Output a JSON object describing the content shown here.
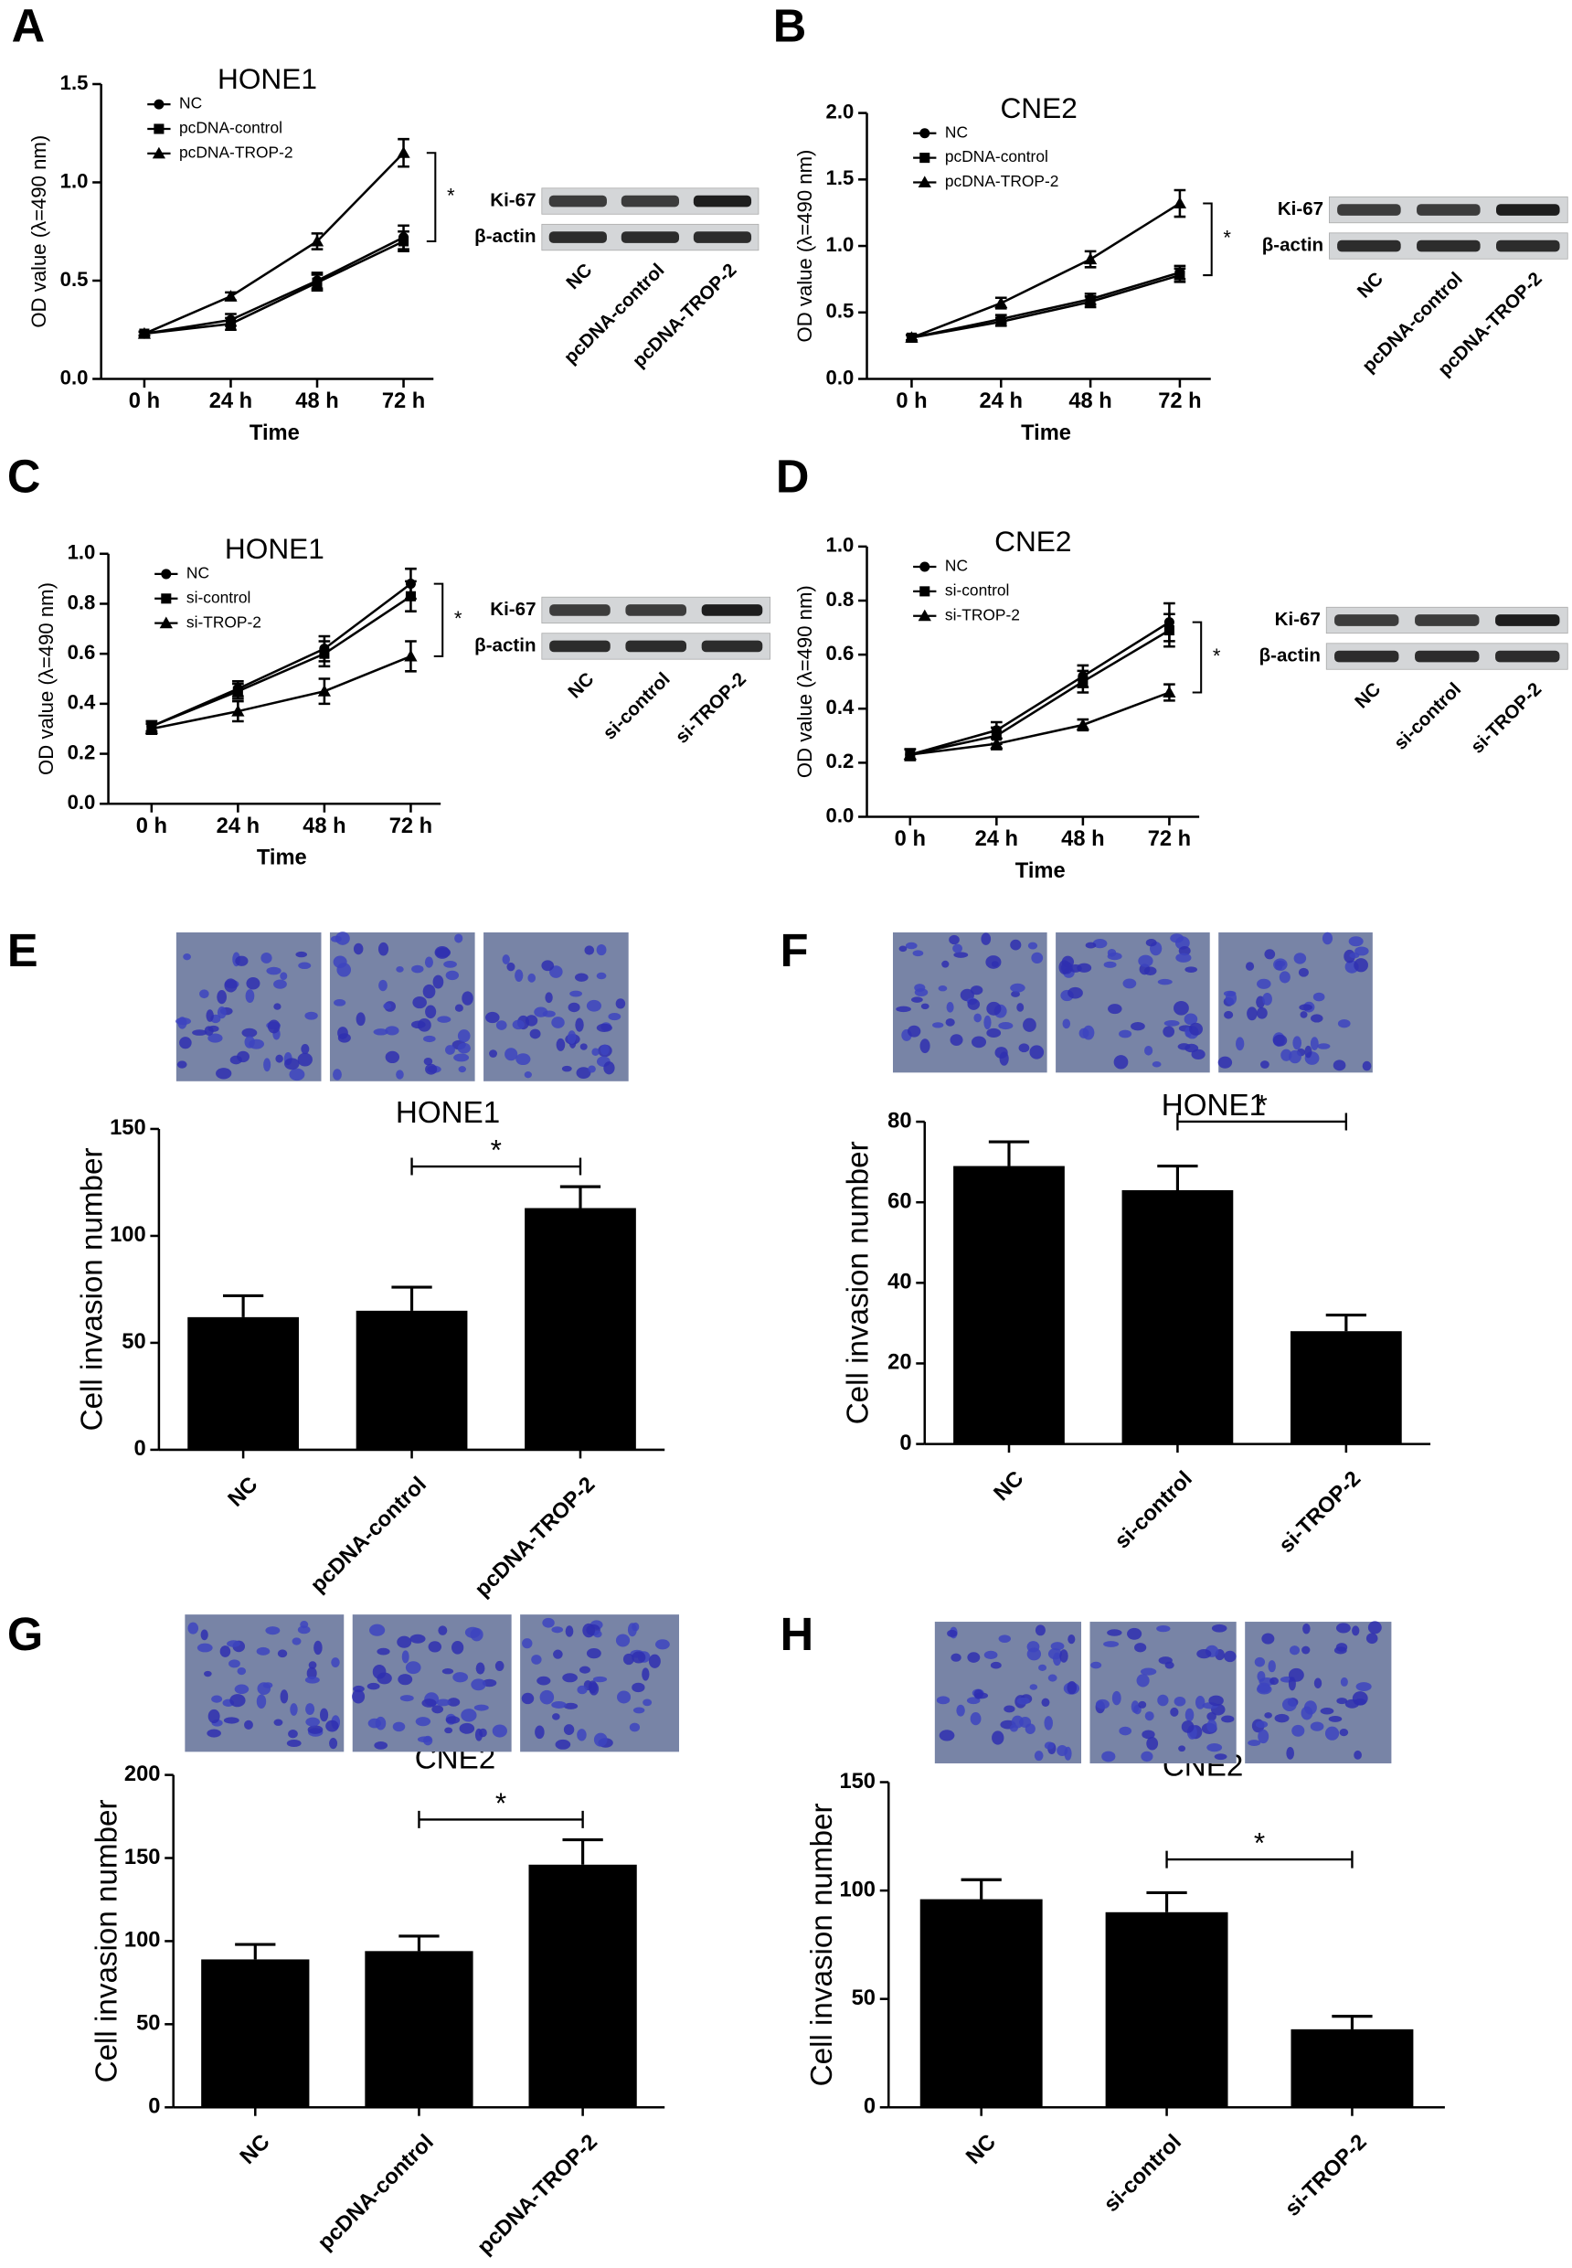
{
  "chart_data": [
    {
      "type": "line",
      "panel": "A",
      "title": "HONE1",
      "xlabel": "Time",
      "ylabel": "OD value (λ=490 nm)",
      "categories": [
        "0 h",
        "24 h",
        "48 h",
        "72 h"
      ],
      "ylim": [
        0,
        1.5
      ],
      "yticks": [
        {
          "value": 0,
          "label": "0.0"
        },
        0.5,
        {
          "value": 1,
          "label": "1.0"
        },
        1.5
      ],
      "series": [
        {
          "name": "NC",
          "marker": "circle",
          "color": "#000000",
          "values": [
            0.23,
            0.3,
            0.5,
            0.72
          ],
          "errors": [
            0.01,
            0.03,
            0.04,
            0.06
          ]
        },
        {
          "name": "pcDNA-control",
          "marker": "square",
          "color": "#000000",
          "values": [
            0.23,
            0.28,
            0.49,
            0.7
          ],
          "errors": [
            0.01,
            0.03,
            0.04,
            0.05
          ]
        },
        {
          "name": "pcDNA-TROP-2",
          "marker": "triangle",
          "color": "#000000",
          "values": [
            0.23,
            0.42,
            0.7,
            1.15
          ],
          "errors": [
            0.01,
            0.02,
            0.04,
            0.07
          ]
        }
      ],
      "significance": "*",
      "blot": {
        "rows": [
          "Ki-67",
          "β-actin"
        ],
        "lanes": [
          "NC",
          "pcDNA-control",
          "pcDNA-TROP-2"
        ]
      }
    },
    {
      "type": "line",
      "panel": "B",
      "title": "CNE2",
      "xlabel": "Time",
      "ylabel": "OD value (λ=490 nm)",
      "categories": [
        "0 h",
        "24 h",
        "48 h",
        "72 h"
      ],
      "ylim": [
        0,
        2
      ],
      "yticks": [
        {
          "value": 0,
          "label": "0.0"
        },
        0.5,
        {
          "value": 1,
          "label": "1.0"
        },
        1.5,
        {
          "value": 2,
          "label": "2.0"
        }
      ],
      "series": [
        {
          "name": "NC",
          "marker": "circle",
          "color": "#000000",
          "values": [
            0.31,
            0.45,
            0.6,
            0.8
          ],
          "errors": [
            0.02,
            0.03,
            0.04,
            0.05
          ]
        },
        {
          "name": "pcDNA-control",
          "marker": "square",
          "color": "#000000",
          "values": [
            0.31,
            0.43,
            0.58,
            0.78
          ],
          "errors": [
            0.02,
            0.03,
            0.04,
            0.05
          ]
        },
        {
          "name": "pcDNA-TROP-2",
          "marker": "triangle",
          "color": "#000000",
          "values": [
            0.31,
            0.57,
            0.9,
            1.32
          ],
          "errors": [
            0.02,
            0.04,
            0.06,
            0.1
          ]
        }
      ],
      "significance": "*",
      "blot": {
        "rows": [
          "Ki-67",
          "β-actin"
        ],
        "lanes": [
          "NC",
          "pcDNA-control",
          "pcDNA-TROP-2"
        ]
      }
    },
    {
      "type": "line",
      "panel": "C",
      "title": "HONE1",
      "xlabel": "Time",
      "ylabel": "OD value (λ=490 nm)",
      "categories": [
        "0 h",
        "24 h",
        "48 h",
        "72 h"
      ],
      "ylim": [
        0,
        1
      ],
      "yticks": [
        {
          "value": 0,
          "label": "0.0"
        },
        0.2,
        0.4,
        0.6,
        0.8,
        {
          "value": 1,
          "label": "1.0"
        }
      ],
      "series": [
        {
          "name": "NC",
          "marker": "circle",
          "color": "#000000",
          "values": [
            0.31,
            0.46,
            0.62,
            0.88
          ],
          "errors": [
            0.02,
            0.03,
            0.05,
            0.06
          ]
        },
        {
          "name": "si-control",
          "marker": "square",
          "color": "#000000",
          "values": [
            0.31,
            0.45,
            0.6,
            0.83
          ],
          "errors": [
            0.02,
            0.03,
            0.05,
            0.06
          ]
        },
        {
          "name": "si-TROP-2",
          "marker": "triangle",
          "color": "#000000",
          "values": [
            0.3,
            0.37,
            0.45,
            0.59
          ],
          "errors": [
            0.02,
            0.04,
            0.05,
            0.06
          ]
        }
      ],
      "significance": "*",
      "blot": {
        "rows": [
          "Ki-67",
          "β-actin"
        ],
        "lanes": [
          "NC",
          "si-control",
          "si-TROP-2"
        ]
      }
    },
    {
      "type": "line",
      "panel": "D",
      "title": "CNE2",
      "xlabel": "Time",
      "ylabel": "OD value (λ=490 nm)",
      "categories": [
        "0 h",
        "24 h",
        "48 h",
        "72 h"
      ],
      "ylim": [
        0,
        1
      ],
      "yticks": [
        {
          "value": 0,
          "label": "0.0"
        },
        0.2,
        0.4,
        0.6,
        0.8,
        {
          "value": 1,
          "label": "1.0"
        }
      ],
      "series": [
        {
          "name": "NC",
          "marker": "circle",
          "color": "#000000",
          "values": [
            0.23,
            0.32,
            0.52,
            0.72
          ],
          "errors": [
            0.02,
            0.03,
            0.04,
            0.07
          ]
        },
        {
          "name": "si-control",
          "marker": "square",
          "color": "#000000",
          "values": [
            0.23,
            0.3,
            0.5,
            0.69
          ],
          "errors": [
            0.02,
            0.03,
            0.04,
            0.06
          ]
        },
        {
          "name": "si-TROP-2",
          "marker": "triangle",
          "color": "#000000",
          "values": [
            0.23,
            0.27,
            0.34,
            0.46
          ],
          "errors": [
            0.02,
            0.02,
            0.02,
            0.03
          ]
        }
      ],
      "significance": "*",
      "blot": {
        "rows": [
          "Ki-67",
          "β-actin"
        ],
        "lanes": [
          "NC",
          "si-control",
          "si-TROP-2"
        ]
      }
    },
    {
      "type": "bar",
      "panel": "E",
      "title": "HONE1",
      "ylabel": "Cell invasion number",
      "categories": [
        "NC",
        "pcDNA-control",
        "pcDNA-TROP-2"
      ],
      "values": [
        62,
        65,
        113
      ],
      "errors": [
        10,
        11,
        10
      ],
      "color": "#000000",
      "ylim": [
        0,
        150
      ],
      "yticks": [
        0,
        50,
        100,
        150
      ],
      "significance": "*"
    },
    {
      "type": "bar",
      "panel": "F",
      "title": "HONE1",
      "ylabel": "Cell invasion number",
      "categories": [
        "NC",
        "si-control",
        "si-TROP-2"
      ],
      "values": [
        69,
        63,
        28
      ],
      "errors": [
        6,
        6,
        4
      ],
      "color": "#000000",
      "ylim": [
        0,
        80
      ],
      "yticks": [
        0,
        20,
        40,
        60,
        80
      ],
      "significance": "*"
    },
    {
      "type": "bar",
      "panel": "G",
      "title": "CNE2",
      "ylabel": "Cell invasion number",
      "categories": [
        "NC",
        "pcDNA-control",
        "pcDNA-TROP-2"
      ],
      "values": [
        89,
        94,
        146
      ],
      "errors": [
        9,
        9,
        15
      ],
      "color": "#000000",
      "ylim": [
        0,
        200
      ],
      "yticks": [
        0,
        50,
        100,
        150,
        200
      ],
      "significance": "*"
    },
    {
      "type": "bar",
      "panel": "H",
      "title": "CNE2",
      "ylabel": "Cell invasion number",
      "categories": [
        "NC",
        "si-control",
        "si-TROP-2"
      ],
      "values": [
        96,
        90,
        36
      ],
      "errors": [
        9,
        9,
        6
      ],
      "color": "#000000",
      "ylim": [
        0,
        150
      ],
      "yticks": [
        0,
        50,
        100,
        150
      ],
      "significance": "*"
    }
  ]
}
